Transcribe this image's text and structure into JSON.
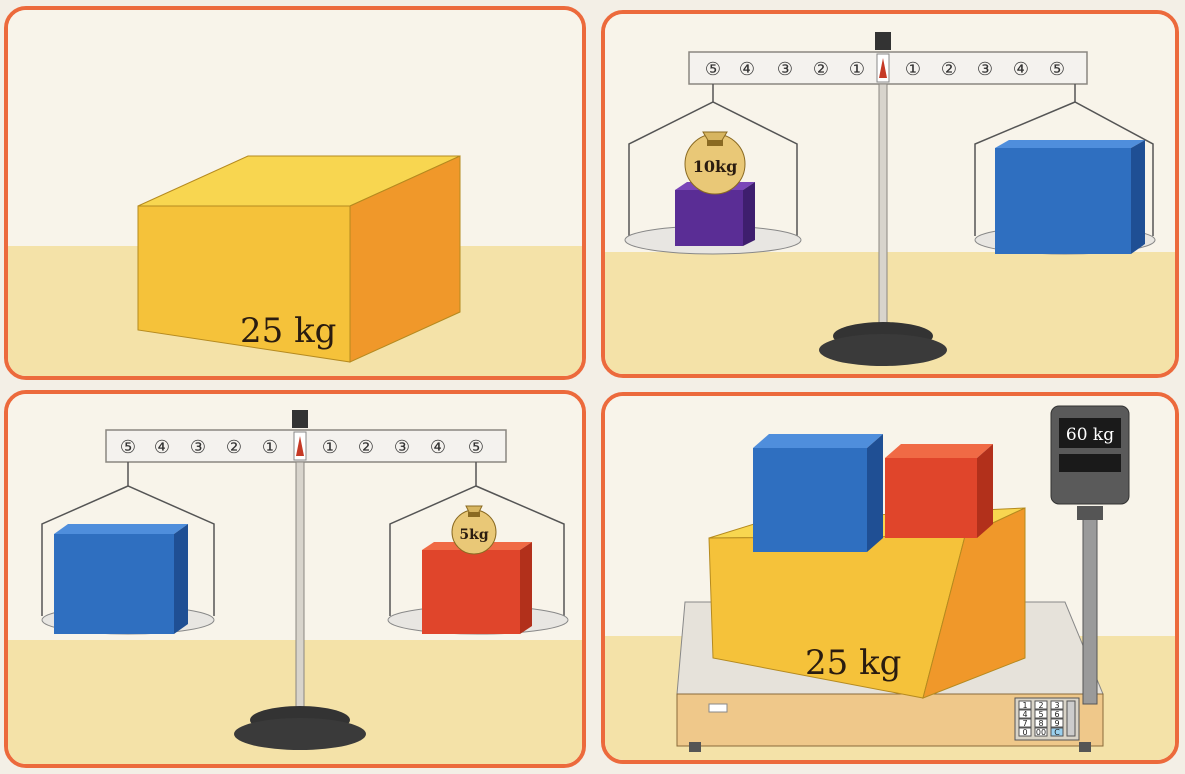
{
  "panel1": {
    "box_label": "25 kg"
  },
  "panel2": {
    "beam_ticks_left": [
      "⑤",
      "④",
      "③",
      "②",
      "①"
    ],
    "beam_ticks_right": [
      "①",
      "②",
      "③",
      "④",
      "⑤"
    ],
    "bag_label": "10kg"
  },
  "panel3": {
    "beam_ticks_left": [
      "⑤",
      "④",
      "③",
      "②",
      "①"
    ],
    "beam_ticks_right": [
      "①",
      "②",
      "③",
      "④",
      "⑤"
    ],
    "bag_label": "5kg"
  },
  "panel4": {
    "display_value": "60 kg",
    "box_label": "25 kg",
    "keypad": [
      "1",
      "2",
      "3",
      "4",
      "5",
      "6",
      "7",
      "8",
      "9",
      "0",
      "00",
      "C"
    ]
  },
  "colors": {
    "frame": "#ec6a3c",
    "yellow_box": "#f5b731",
    "blue_box": "#2f6fc0",
    "red_box": "#e0452b",
    "purple_box": "#5a2d95",
    "floor": "#f4e2a8"
  }
}
